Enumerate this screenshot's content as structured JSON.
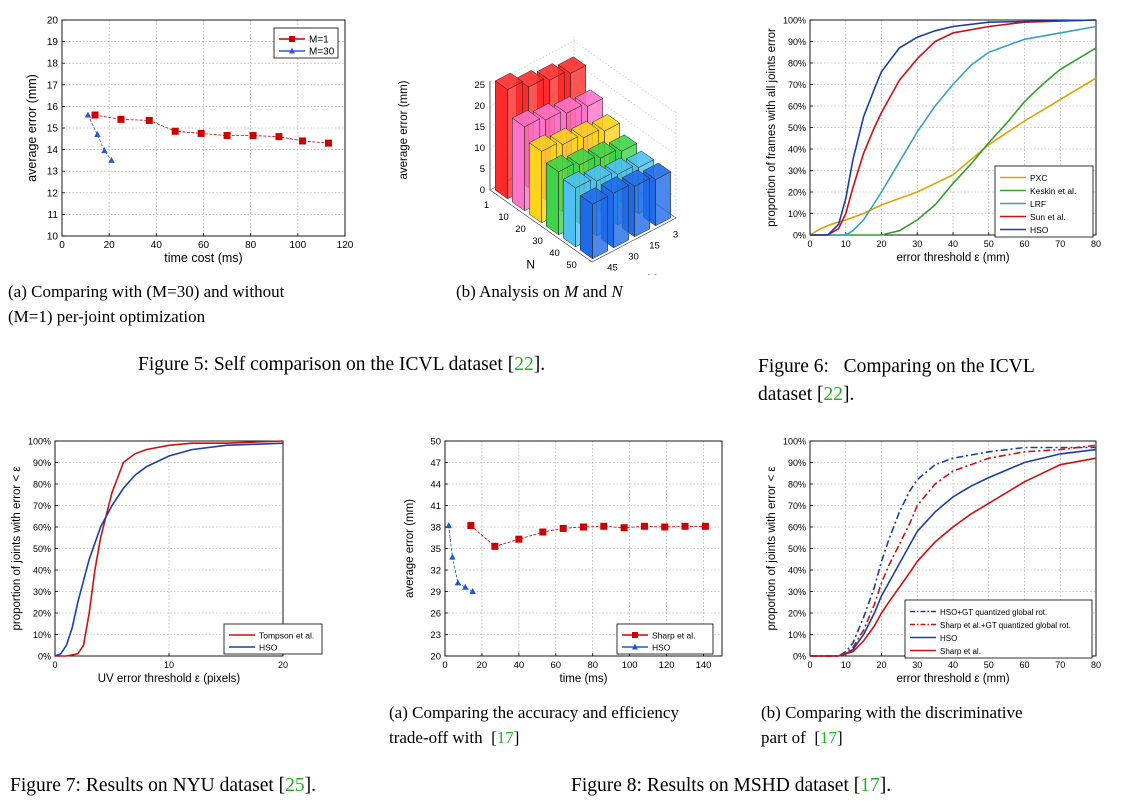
{
  "charts": {
    "fig5a": {
      "xlabel": "time cost (ms)",
      "ylabel": "average error (mm)",
      "xticks": [
        "0",
        "20",
        "40",
        "60",
        "80",
        "100",
        "120"
      ],
      "yticks": [
        "10",
        "11",
        "12",
        "13",
        "14",
        "15",
        "16",
        "17",
        "18",
        "19",
        "20"
      ],
      "legend": [
        "M=1",
        "M=30"
      ]
    },
    "fig5b": {
      "zlabel": "average error (mm)",
      "zticks": [
        "0",
        "5",
        "10",
        "15",
        "20",
        "25"
      ],
      "nlabel": "N",
      "nticks": [
        "1",
        "10",
        "20",
        "30",
        "40",
        "50"
      ],
      "mlabel": "M",
      "mticks": [
        "45",
        "30",
        "15",
        "3"
      ]
    },
    "fig6": {
      "xlabel": "error threshold  ε (mm)",
      "ylabel": "proportion of frames with all joints error",
      "xticks": [
        "0",
        "10",
        "20",
        "30",
        "40",
        "50",
        "60",
        "70",
        "80"
      ],
      "yticks": [
        "0%",
        "10%",
        "20%",
        "30%",
        "40%",
        "50%",
        "60%",
        "70%",
        "80%",
        "90%",
        "100%"
      ],
      "legend": [
        "PXC",
        "Keskin et al.",
        "LRF",
        "Sun et al.",
        "HSO"
      ]
    },
    "fig7": {
      "xlabel": "UV error threshold ε (pixels)",
      "ylabel": "proportion of joints with error < ε",
      "xticks": [
        "0",
        "10",
        "20"
      ],
      "yticks": [
        "0%",
        "10%",
        "20%",
        "30%",
        "40%",
        "50%",
        "60%",
        "70%",
        "80%",
        "90%",
        "100%"
      ],
      "legend": [
        "Tompson et al.",
        "HSO"
      ]
    },
    "fig8a": {
      "xlabel": "time (ms)",
      "ylabel": "average error (mm)",
      "xticks": [
        "0",
        "20",
        "40",
        "60",
        "80",
        "100",
        "120",
        "140"
      ],
      "yticks": [
        "20",
        "23",
        "26",
        "29",
        "32",
        "35",
        "38",
        "41",
        "44",
        "47",
        "50"
      ],
      "legend": [
        "Sharp et al.",
        "HSO"
      ]
    },
    "fig8b": {
      "xlabel": "error threshold ε (mm)",
      "ylabel": "proportion of joints with error < ε",
      "xticks": [
        "0",
        "10",
        "20",
        "30",
        "40",
        "50",
        "60",
        "70",
        "80"
      ],
      "yticks": [
        "0%",
        "10%",
        "20%",
        "30%",
        "40%",
        "50%",
        "60%",
        "70%",
        "80%",
        "90%",
        "100%"
      ],
      "legend": [
        "HSO+GT quantized global rot.",
        "Sharp et al.+GT quantized global rot.",
        "HSO",
        "Sharp et al."
      ]
    }
  },
  "chart_data": [
    {
      "id": "fig5a",
      "type": "line",
      "xlim": [
        0,
        120
      ],
      "ylim": [
        10,
        20
      ],
      "grid": true,
      "legend_position": "top-right",
      "series": [
        {
          "name": "M=1",
          "color": "#cc0000",
          "marker": "square",
          "x": [
            14,
            25,
            37,
            48,
            59,
            70,
            81,
            92,
            102,
            113
          ],
          "y": [
            15.6,
            15.4,
            15.35,
            14.85,
            14.75,
            14.65,
            14.65,
            14.6,
            14.4,
            14.3
          ]
        },
        {
          "name": "M=30",
          "color": "#3355cc",
          "marker": "triangle",
          "x": [
            11,
            15,
            18,
            21
          ],
          "y": [
            15.6,
            14.7,
            13.95,
            13.5
          ]
        }
      ]
    },
    {
      "id": "fig5b",
      "type": "bar3d",
      "zlim": [
        0,
        25
      ],
      "n": [
        "1",
        "10",
        "20",
        "30",
        "40",
        "50"
      ],
      "m": [
        "3",
        "15",
        "30",
        "45"
      ],
      "values": [
        [
          22,
          17,
          14,
          12,
          11,
          11
        ],
        [
          23,
          18,
          15,
          13,
          12,
          12
        ],
        [
          24,
          19,
          16,
          14,
          13,
          13
        ],
        [
          26,
          20,
          17,
          15,
          14,
          13
        ]
      ]
    },
    {
      "id": "fig6",
      "type": "line",
      "xlim": [
        0,
        80
      ],
      "ylim": [
        0,
        1
      ],
      "grid": true,
      "legend_position": "bottom-right",
      "series": [
        {
          "name": "PXC",
          "color": "#d9a400",
          "x": [
            0,
            3,
            6,
            10,
            15,
            20,
            30,
            40,
            50,
            60,
            70,
            80
          ],
          "y": [
            0,
            0.03,
            0.05,
            0.07,
            0.1,
            0.14,
            0.2,
            0.28,
            0.42,
            0.53,
            0.63,
            0.73
          ]
        },
        {
          "name": "Keskin et al.",
          "color": "#33a02c",
          "x": [
            0,
            10,
            15,
            20,
            25,
            30,
            35,
            40,
            45,
            50,
            55,
            60,
            65,
            70,
            75,
            80
          ],
          "y": [
            0,
            0,
            0,
            0,
            0.02,
            0.07,
            0.14,
            0.24,
            0.33,
            0.43,
            0.52,
            0.62,
            0.7,
            0.77,
            0.82,
            0.87
          ]
        },
        {
          "name": "LRF",
          "color": "#3aa0c0",
          "x": [
            0,
            10,
            12,
            15,
            20,
            25,
            30,
            35,
            40,
            45,
            50,
            55,
            60,
            70,
            80
          ],
          "y": [
            0,
            0,
            0.02,
            0.07,
            0.2,
            0.34,
            0.48,
            0.6,
            0.7,
            0.79,
            0.85,
            0.88,
            0.91,
            0.94,
            0.97
          ]
        },
        {
          "name": "Sun et al.",
          "color": "#cc1111",
          "x": [
            0,
            5,
            8,
            10,
            12,
            15,
            18,
            20,
            25,
            30,
            35,
            40,
            50,
            60,
            80
          ],
          "y": [
            0,
            0,
            0.03,
            0.1,
            0.22,
            0.38,
            0.5,
            0.57,
            0.72,
            0.82,
            0.9,
            0.94,
            0.97,
            0.99,
            1.0
          ]
        },
        {
          "name": "HSO",
          "color": "#1a3fa8",
          "x": [
            0,
            5,
            8,
            10,
            12,
            15,
            18,
            20,
            25,
            30,
            35,
            40,
            50,
            80
          ],
          "y": [
            0,
            0,
            0.05,
            0.17,
            0.35,
            0.55,
            0.68,
            0.76,
            0.87,
            0.92,
            0.95,
            0.97,
            0.99,
            1.0
          ]
        }
      ]
    },
    {
      "id": "fig7",
      "type": "line",
      "xlim": [
        0,
        20
      ],
      "ylim": [
        0,
        1
      ],
      "grid": true,
      "legend_position": "bottom-right",
      "series": [
        {
          "name": "Tompson et al.",
          "color": "#cc1111",
          "x": [
            0,
            1,
            2,
            2.5,
            3,
            3.5,
            4,
            5,
            6,
            7,
            8,
            10,
            12,
            15,
            20
          ],
          "y": [
            0,
            0,
            0.01,
            0.05,
            0.2,
            0.4,
            0.55,
            0.76,
            0.9,
            0.94,
            0.96,
            0.98,
            0.99,
            0.99,
            1.0
          ]
        },
        {
          "name": "HSO",
          "color": "#1a3fa8",
          "x": [
            0,
            0.5,
            1,
            1.5,
            2,
            3,
            4,
            5,
            6,
            7,
            8,
            10,
            12,
            15,
            20
          ],
          "y": [
            0,
            0.01,
            0.05,
            0.13,
            0.25,
            0.45,
            0.6,
            0.7,
            0.78,
            0.84,
            0.88,
            0.93,
            0.96,
            0.98,
            0.99
          ]
        }
      ]
    },
    {
      "id": "fig8a",
      "type": "line",
      "xlim": [
        0,
        150
      ],
      "ylim": [
        20,
        50
      ],
      "grid": true,
      "legend_position": "bottom-right",
      "series": [
        {
          "name": "Sharp et al.",
          "color": "#cc0000",
          "marker": "square",
          "x": [
            14,
            27,
            40,
            53,
            64,
            75,
            86,
            97,
            108,
            119,
            130,
            141
          ],
          "y": [
            38.2,
            35.3,
            36.3,
            37.3,
            37.8,
            38,
            38.1,
            37.9,
            38.1,
            38,
            38.1,
            38.1
          ]
        },
        {
          "name": "HSO",
          "color": "#1a5ad0",
          "marker": "triangle",
          "x": [
            2,
            4,
            7,
            11,
            15
          ],
          "y": [
            38.2,
            33.8,
            30.2,
            29.6,
            29.0
          ]
        }
      ]
    },
    {
      "id": "fig8b",
      "type": "line",
      "xlim": [
        0,
        80
      ],
      "ylim": [
        0,
        1
      ],
      "grid": true,
      "legend_position": "bottom-left",
      "series": [
        {
          "name": "HSO+GT quantized global rot.",
          "color": "#1a3fa8",
          "dash": "dashdot",
          "x": [
            0,
            8,
            10,
            12,
            15,
            18,
            20,
            22,
            25,
            28,
            30,
            35,
            40,
            50,
            60,
            70,
            80
          ],
          "y": [
            0,
            0,
            0.02,
            0.06,
            0.18,
            0.32,
            0.44,
            0.54,
            0.67,
            0.77,
            0.82,
            0.89,
            0.92,
            0.95,
            0.97,
            0.97,
            0.97
          ]
        },
        {
          "name": "Sharp et al.+GT quantized global rot.",
          "color": "#cc1111",
          "dash": "dashdot",
          "x": [
            0,
            8,
            10,
            12,
            15,
            18,
            20,
            22,
            25,
            28,
            30,
            35,
            40,
            50,
            60,
            70,
            80
          ],
          "y": [
            0,
            0,
            0.01,
            0.04,
            0.12,
            0.24,
            0.34,
            0.42,
            0.52,
            0.62,
            0.7,
            0.8,
            0.86,
            0.92,
            0.95,
            0.96,
            0.98
          ]
        },
        {
          "name": "HSO",
          "color": "#1a3fa8",
          "x": [
            0,
            8,
            10,
            12,
            15,
            18,
            20,
            22,
            25,
            28,
            30,
            35,
            40,
            45,
            50,
            60,
            70,
            80
          ],
          "y": [
            0,
            0,
            0.01,
            0.03,
            0.1,
            0.2,
            0.28,
            0.34,
            0.43,
            0.52,
            0.58,
            0.67,
            0.74,
            0.79,
            0.83,
            0.9,
            0.94,
            0.96
          ]
        },
        {
          "name": "Sharp et al.",
          "color": "#cc1111",
          "x": [
            0,
            8,
            10,
            12,
            15,
            18,
            20,
            22,
            25,
            28,
            30,
            35,
            40,
            45,
            50,
            60,
            70,
            80
          ],
          "y": [
            0,
            0,
            0.01,
            0.02,
            0.07,
            0.14,
            0.2,
            0.25,
            0.32,
            0.39,
            0.44,
            0.53,
            0.6,
            0.66,
            0.71,
            0.81,
            0.89,
            0.92
          ]
        }
      ]
    }
  ],
  "captions": {
    "fig5a_line1": "(a) Comparing with (M=30) and without",
    "fig5a_line2": "(M=1) per-joint optimization",
    "fig5b_pre": "(b) Analysis on ",
    "fig5b_m": "M",
    "fig5b_mid": " and ",
    "fig5b_n": "N",
    "fig5_pre": "Figure 5: Self comparison on the ICVL dataset [",
    "fig5_ref": "22",
    "fig5_post": "].",
    "fig6_line1": "Figure 6:   Comparing on the ICVL",
    "fig6_line2_pre": "dataset [",
    "fig6_ref": "22",
    "fig6_line2_post": "].",
    "fig8a_line1": "(a) Comparing the accuracy and efficiency",
    "fig8a_line2_pre": "trade-off with  [",
    "fig8a_ref": "17",
    "fig8a_line2_post": "]",
    "fig8b_line1": "(b) Comparing with the discriminative",
    "fig8b_line2_pre": "part of  [",
    "fig8b_ref": "17",
    "fig8b_line2_post": "]",
    "fig7_pre": "Figure 7: Results on NYU dataset [",
    "fig7_ref": "25",
    "fig7_post": "].",
    "fig8_pre": "Figure 8: Results on MSHD dataset [",
    "fig8_ref": "17",
    "fig8_post": "]."
  }
}
